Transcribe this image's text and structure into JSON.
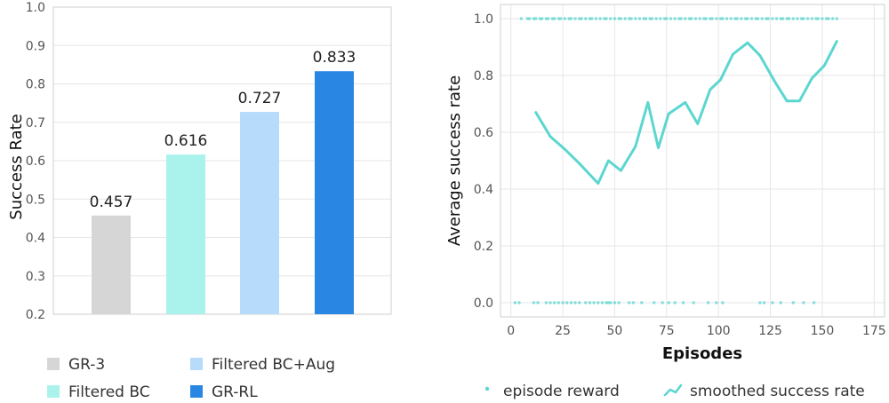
{
  "chart_data": [
    {
      "type": "bar",
      "ylabel": "Success Rate",
      "ylim": [
        0.2,
        1.0
      ],
      "yticks": [
        0.2,
        0.3,
        0.4,
        0.5,
        0.6,
        0.7,
        0.8,
        0.9,
        1.0
      ],
      "grid": true,
      "categories": [
        "GR-3",
        "Filtered BC",
        "Filtered BC+Aug",
        "GR-RL"
      ],
      "values": [
        0.457,
        0.616,
        0.727,
        0.833
      ],
      "data_labels": [
        "0.457",
        "0.616",
        "0.727",
        "0.833"
      ],
      "colors": [
        "#d6d6d6",
        "#aaf3ec",
        "#b7dbfb",
        "#2a86e3"
      ],
      "legend_placement": "bottom"
    },
    {
      "type": "line",
      "xlabel": "Episodes",
      "ylabel": "Average success rate",
      "xlim": [
        -5,
        180
      ],
      "ylim": [
        -0.05,
        1.05
      ],
      "xticks": [
        0,
        25,
        50,
        75,
        100,
        125,
        150,
        175
      ],
      "yticks": [
        0.0,
        0.2,
        0.4,
        0.6,
        0.8,
        1.0
      ],
      "grid": true,
      "legend_placement": "bottom",
      "color": "#5cd6d0",
      "series": [
        {
          "name": "smoothed success rate",
          "x": [
            12,
            19,
            26,
            33,
            42,
            47,
            53,
            60,
            66,
            71,
            76,
            84,
            90,
            96,
            101,
            107,
            114,
            120,
            127,
            133,
            139,
            145,
            151,
            157
          ],
          "y": [
            0.67,
            0.585,
            0.54,
            0.49,
            0.42,
            0.5,
            0.465,
            0.55,
            0.705,
            0.545,
            0.665,
            0.705,
            0.63,
            0.75,
            0.785,
            0.875,
            0.915,
            0.87,
            0.78,
            0.71,
            0.71,
            0.79,
            0.835,
            0.92
          ]
        },
        {
          "name": "episode reward",
          "marker": "dot",
          "x_success": [
            5,
            8,
            9,
            11,
            12,
            14,
            15,
            17,
            18,
            20,
            21,
            23,
            24,
            26,
            28,
            29,
            31,
            33,
            34,
            36,
            38,
            39,
            41,
            43,
            45,
            46,
            48,
            50,
            52,
            53,
            55,
            57,
            58,
            60,
            62,
            64,
            65,
            67,
            68,
            70,
            72,
            74,
            75,
            77,
            79,
            81,
            82,
            84,
            86,
            87,
            89,
            91,
            93,
            94,
            96,
            97,
            99,
            101,
            102,
            104,
            106,
            108,
            109,
            111,
            113,
            114,
            116,
            118,
            119,
            121,
            123,
            124,
            126,
            128,
            130,
            131,
            133,
            134,
            136,
            138,
            140,
            141,
            143,
            145,
            147,
            148,
            150,
            152,
            153,
            155,
            157
          ],
          "x_failure": [
            2,
            4,
            11,
            13,
            17,
            19,
            21,
            23,
            25,
            27,
            29,
            31,
            33,
            36,
            38,
            40,
            42,
            44,
            46,
            47,
            48,
            50,
            52,
            57,
            59,
            63,
            69,
            73,
            76,
            79,
            83,
            88,
            95,
            99,
            102,
            120,
            122,
            126,
            130,
            136,
            141,
            146
          ]
        }
      ]
    }
  ]
}
